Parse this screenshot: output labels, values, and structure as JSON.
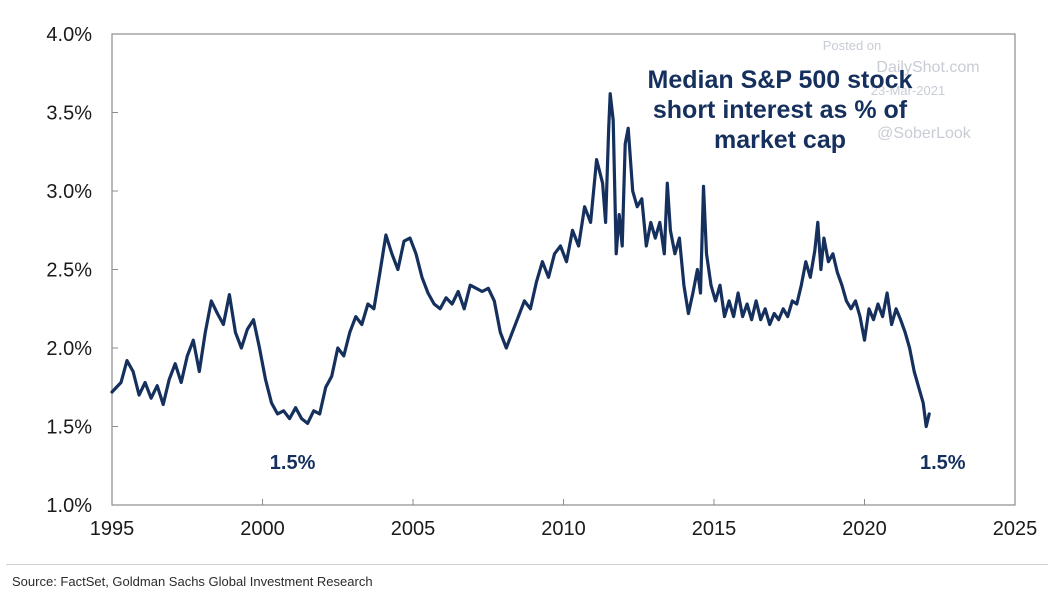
{
  "chart_data": {
    "type": "line",
    "title": "Median S&P 500 stock short interest as % of market cap",
    "title_lines": [
      "Median S&P 500 stock",
      "short interest as % of",
      "market cap"
    ],
    "xlim": [
      1995,
      2025
    ],
    "ylim": [
      1.0,
      4.0
    ],
    "x_ticks": [
      1995,
      2000,
      2005,
      2010,
      2015,
      2020,
      2025
    ],
    "x_tick_labels": [
      "1995",
      "2000",
      "2005",
      "2010",
      "2015",
      "2020",
      "2025"
    ],
    "y_ticks": [
      1.0,
      1.5,
      2.0,
      2.5,
      3.0,
      3.5,
      4.0
    ],
    "y_tick_labels": [
      "1.0%",
      "1.5%",
      "2.0%",
      "2.5%",
      "3.0%",
      "3.5%",
      "4.0%"
    ],
    "grid": false,
    "line_color": "#16305e",
    "series": [
      {
        "points": [
          [
            1995.0,
            1.72
          ],
          [
            1995.3,
            1.78
          ],
          [
            1995.5,
            1.92
          ],
          [
            1995.7,
            1.85
          ],
          [
            1995.9,
            1.7
          ],
          [
            1996.1,
            1.78
          ],
          [
            1996.3,
            1.68
          ],
          [
            1996.5,
            1.76
          ],
          [
            1996.7,
            1.64
          ],
          [
            1996.9,
            1.8
          ],
          [
            1997.1,
            1.9
          ],
          [
            1997.3,
            1.78
          ],
          [
            1997.5,
            1.95
          ],
          [
            1997.7,
            2.05
          ],
          [
            1997.9,
            1.85
          ],
          [
            1998.1,
            2.1
          ],
          [
            1998.3,
            2.3
          ],
          [
            1998.5,
            2.22
          ],
          [
            1998.7,
            2.15
          ],
          [
            1998.9,
            2.34
          ],
          [
            1999.1,
            2.1
          ],
          [
            1999.3,
            2.0
          ],
          [
            1999.5,
            2.12
          ],
          [
            1999.7,
            2.18
          ],
          [
            1999.9,
            2.0
          ],
          [
            2000.1,
            1.8
          ],
          [
            2000.3,
            1.65
          ],
          [
            2000.5,
            1.58
          ],
          [
            2000.7,
            1.6
          ],
          [
            2000.9,
            1.55
          ],
          [
            2001.1,
            1.62
          ],
          [
            2001.3,
            1.55
          ],
          [
            2001.5,
            1.52
          ],
          [
            2001.7,
            1.6
          ],
          [
            2001.9,
            1.58
          ],
          [
            2002.1,
            1.75
          ],
          [
            2002.3,
            1.82
          ],
          [
            2002.5,
            2.0
          ],
          [
            2002.7,
            1.95
          ],
          [
            2002.9,
            2.1
          ],
          [
            2003.1,
            2.2
          ],
          [
            2003.3,
            2.15
          ],
          [
            2003.5,
            2.28
          ],
          [
            2003.7,
            2.25
          ],
          [
            2003.9,
            2.48
          ],
          [
            2004.1,
            2.72
          ],
          [
            2004.3,
            2.6
          ],
          [
            2004.5,
            2.5
          ],
          [
            2004.7,
            2.68
          ],
          [
            2004.9,
            2.7
          ],
          [
            2005.1,
            2.6
          ],
          [
            2005.3,
            2.45
          ],
          [
            2005.5,
            2.35
          ],
          [
            2005.7,
            2.28
          ],
          [
            2005.9,
            2.25
          ],
          [
            2006.1,
            2.32
          ],
          [
            2006.3,
            2.28
          ],
          [
            2006.5,
            2.36
          ],
          [
            2006.7,
            2.25
          ],
          [
            2006.9,
            2.4
          ],
          [
            2007.1,
            2.38
          ],
          [
            2007.3,
            2.36
          ],
          [
            2007.5,
            2.38
          ],
          [
            2007.7,
            2.3
          ],
          [
            2007.9,
            2.1
          ],
          [
            2008.1,
            2.0
          ],
          [
            2008.3,
            2.1
          ],
          [
            2008.5,
            2.2
          ],
          [
            2008.7,
            2.3
          ],
          [
            2008.9,
            2.25
          ],
          [
            2009.1,
            2.42
          ],
          [
            2009.3,
            2.55
          ],
          [
            2009.5,
            2.45
          ],
          [
            2009.7,
            2.6
          ],
          [
            2009.9,
            2.65
          ],
          [
            2010.1,
            2.55
          ],
          [
            2010.3,
            2.75
          ],
          [
            2010.5,
            2.65
          ],
          [
            2010.7,
            2.9
          ],
          [
            2010.9,
            2.8
          ],
          [
            2011.1,
            3.2
          ],
          [
            2011.3,
            3.05
          ],
          [
            2011.4,
            2.8
          ],
          [
            2011.5,
            3.4
          ],
          [
            2011.55,
            3.62
          ],
          [
            2011.65,
            3.45
          ],
          [
            2011.75,
            2.6
          ],
          [
            2011.85,
            2.85
          ],
          [
            2011.95,
            2.65
          ],
          [
            2012.05,
            3.3
          ],
          [
            2012.15,
            3.4
          ],
          [
            2012.3,
            3.0
          ],
          [
            2012.45,
            2.9
          ],
          [
            2012.6,
            2.95
          ],
          [
            2012.75,
            2.65
          ],
          [
            2012.9,
            2.8
          ],
          [
            2013.05,
            2.7
          ],
          [
            2013.2,
            2.8
          ],
          [
            2013.35,
            2.6
          ],
          [
            2013.45,
            3.05
          ],
          [
            2013.55,
            2.75
          ],
          [
            2013.7,
            2.6
          ],
          [
            2013.85,
            2.7
          ],
          [
            2014.0,
            2.4
          ],
          [
            2014.15,
            2.22
          ],
          [
            2014.3,
            2.35
          ],
          [
            2014.45,
            2.5
          ],
          [
            2014.55,
            2.35
          ],
          [
            2014.65,
            3.03
          ],
          [
            2014.75,
            2.6
          ],
          [
            2014.9,
            2.4
          ],
          [
            2015.05,
            2.3
          ],
          [
            2015.2,
            2.4
          ],
          [
            2015.35,
            2.2
          ],
          [
            2015.5,
            2.3
          ],
          [
            2015.65,
            2.2
          ],
          [
            2015.8,
            2.35
          ],
          [
            2015.95,
            2.2
          ],
          [
            2016.1,
            2.28
          ],
          [
            2016.25,
            2.18
          ],
          [
            2016.4,
            2.3
          ],
          [
            2016.55,
            2.18
          ],
          [
            2016.7,
            2.25
          ],
          [
            2016.85,
            2.15
          ],
          [
            2017.0,
            2.22
          ],
          [
            2017.15,
            2.18
          ],
          [
            2017.3,
            2.25
          ],
          [
            2017.45,
            2.2
          ],
          [
            2017.6,
            2.3
          ],
          [
            2017.75,
            2.28
          ],
          [
            2017.9,
            2.4
          ],
          [
            2018.05,
            2.55
          ],
          [
            2018.2,
            2.45
          ],
          [
            2018.35,
            2.62
          ],
          [
            2018.45,
            2.8
          ],
          [
            2018.55,
            2.5
          ],
          [
            2018.65,
            2.7
          ],
          [
            2018.8,
            2.55
          ],
          [
            2018.95,
            2.6
          ],
          [
            2019.1,
            2.48
          ],
          [
            2019.25,
            2.4
          ],
          [
            2019.4,
            2.3
          ],
          [
            2019.55,
            2.25
          ],
          [
            2019.7,
            2.3
          ],
          [
            2019.85,
            2.2
          ],
          [
            2020.0,
            2.05
          ],
          [
            2020.15,
            2.25
          ],
          [
            2020.3,
            2.18
          ],
          [
            2020.45,
            2.28
          ],
          [
            2020.6,
            2.2
          ],
          [
            2020.75,
            2.35
          ],
          [
            2020.9,
            2.15
          ],
          [
            2021.05,
            2.25
          ],
          [
            2021.2,
            2.18
          ],
          [
            2021.35,
            2.1
          ],
          [
            2021.5,
            2.0
          ],
          [
            2021.65,
            1.85
          ],
          [
            2021.8,
            1.75
          ],
          [
            2021.95,
            1.65
          ],
          [
            2022.05,
            1.5
          ],
          [
            2022.15,
            1.58
          ]
        ]
      }
    ],
    "annotations": [
      {
        "text": "1.5%",
        "x": 2001.0,
        "y": 1.42
      },
      {
        "text": "1.5%",
        "x": 2022.6,
        "y": 1.42
      }
    ]
  },
  "watermark": {
    "lines": [
      "Posted on",
      "DailyShot.com",
      "23-Mar-2021",
      "@SoberLook"
    ]
  },
  "source": "Source: FactSet, Goldman Sachs Global Investment Research"
}
